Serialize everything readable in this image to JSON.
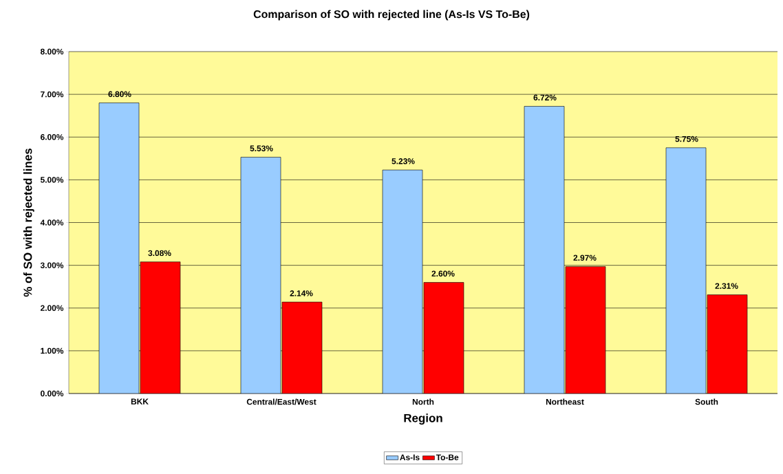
{
  "chart_data": {
    "type": "bar",
    "title": "Comparison of SO with rejected line (As-Is VS To-Be)",
    "xlabel": "Region",
    "ylabel": "% of SO with rejected lines",
    "categories": [
      "BKK",
      "Central/East/West",
      "North",
      "Northeast",
      "South"
    ],
    "series": [
      {
        "name": "As-Is",
        "color": "#99ccff",
        "values": [
          6.8,
          5.53,
          5.23,
          6.72,
          5.75
        ],
        "value_labels": [
          "6.80%",
          "5.53%",
          "5.23%",
          "6.72%",
          "5.75%"
        ]
      },
      {
        "name": "To-Be",
        "color": "#ff0000",
        "values": [
          3.08,
          2.14,
          2.6,
          2.97,
          2.31
        ],
        "value_labels": [
          "3.08%",
          "2.14%",
          "2.60%",
          "2.97%",
          "2.31%"
        ]
      }
    ],
    "ylim": [
      0,
      8
    ],
    "yticks": [
      {
        "value": 0,
        "label": "0.00%"
      },
      {
        "value": 1,
        "label": "1.00%"
      },
      {
        "value": 2,
        "label": "2.00%"
      },
      {
        "value": 3,
        "label": "3.00%"
      },
      {
        "value": 4,
        "label": "4.00%"
      },
      {
        "value": 5,
        "label": "5.00%"
      },
      {
        "value": 6,
        "label": "6.00%"
      },
      {
        "value": 7,
        "label": "7.00%"
      },
      {
        "value": 8,
        "label": "8.00%"
      }
    ],
    "grid": "y",
    "legend": "bottom"
  }
}
